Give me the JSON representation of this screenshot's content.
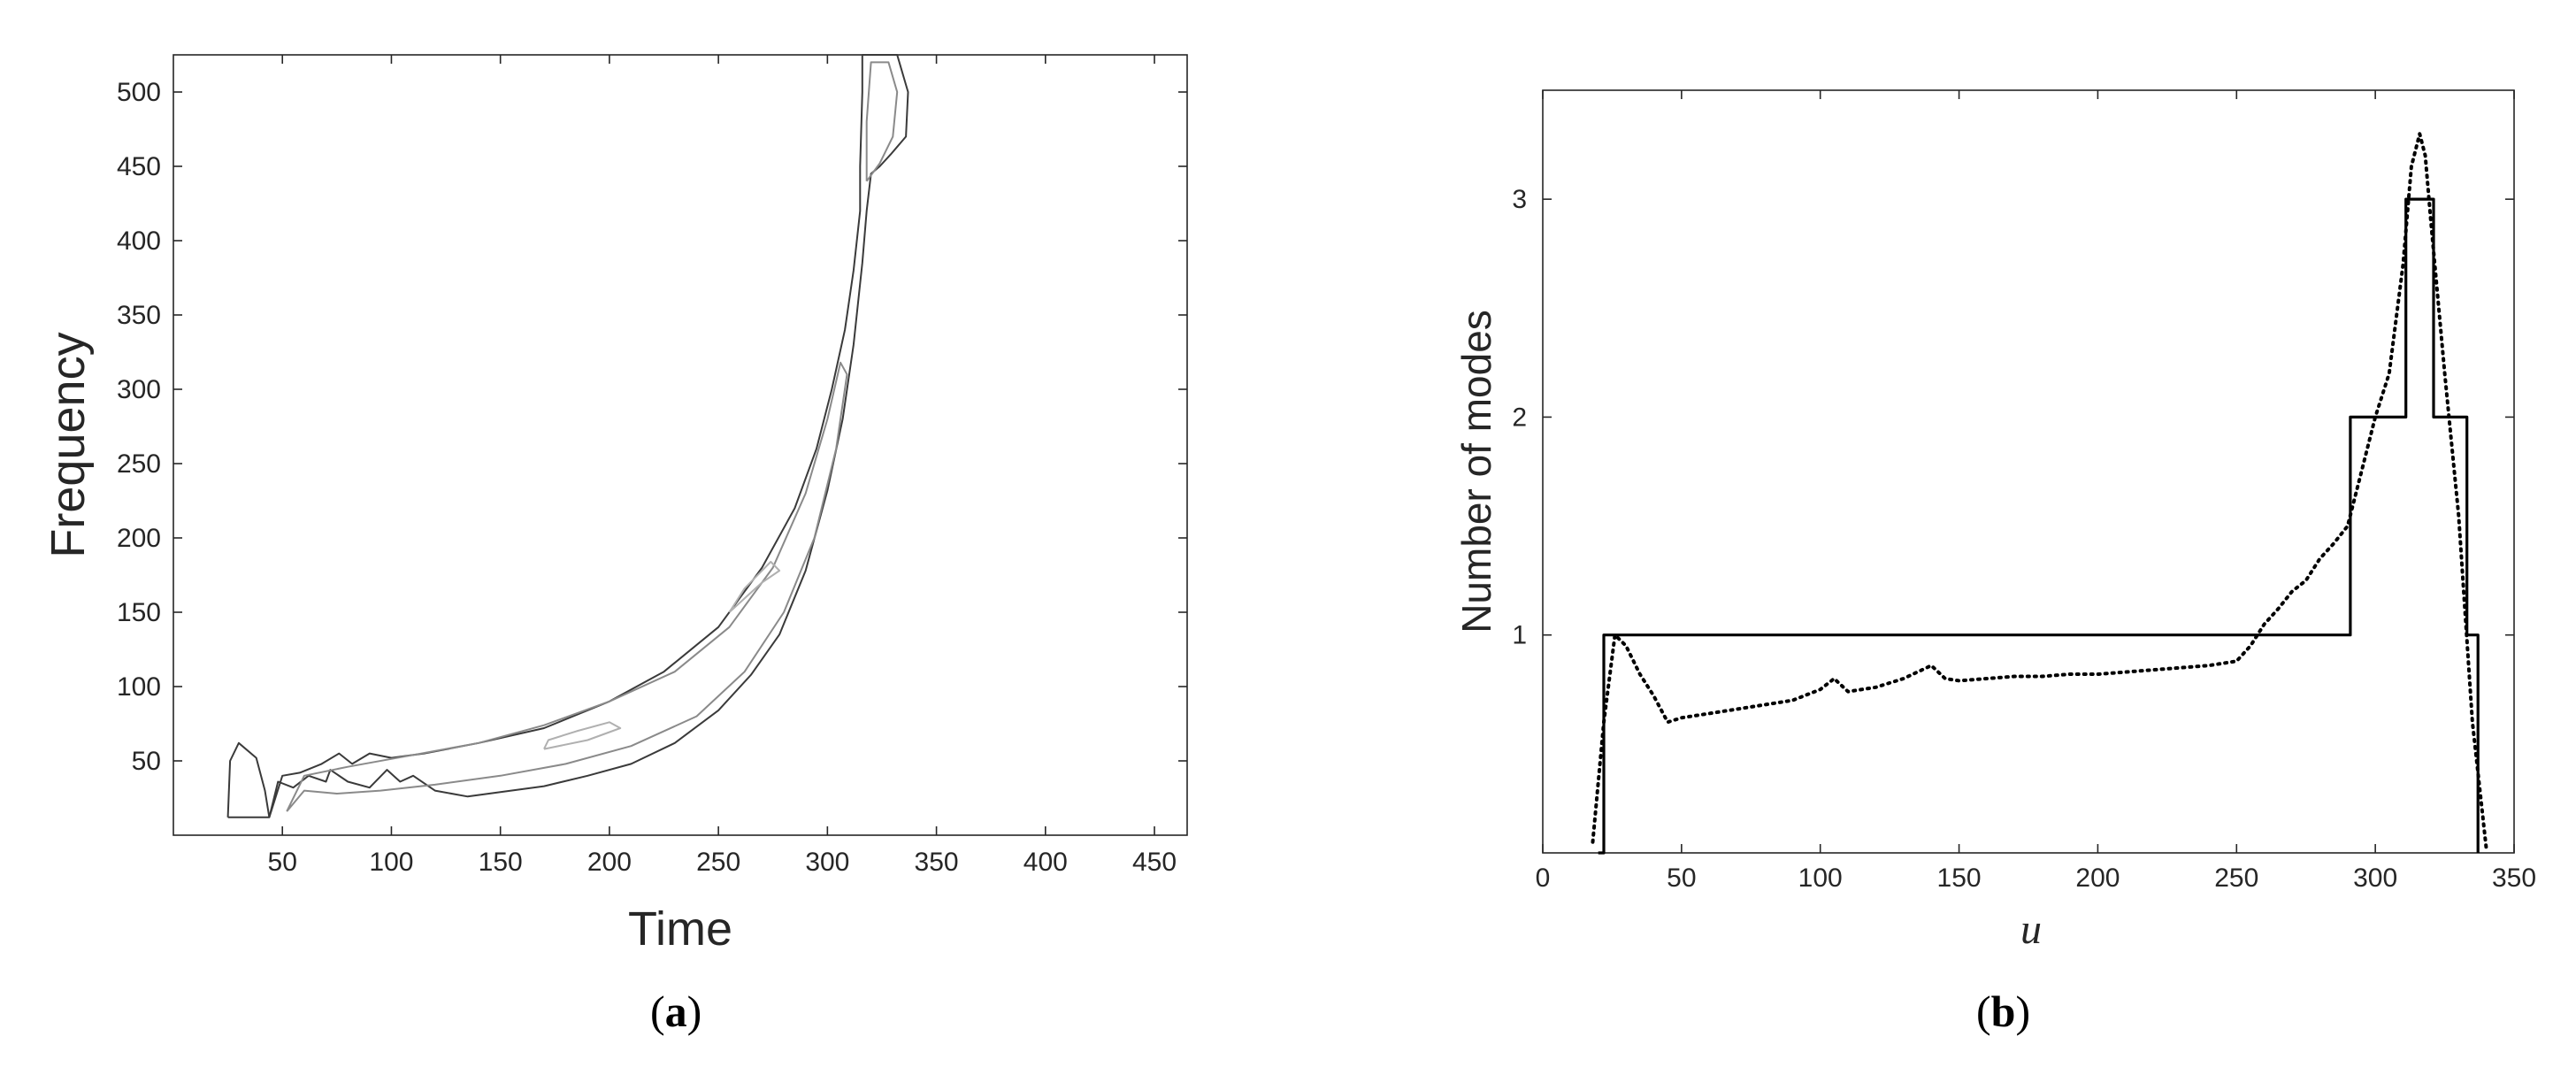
{
  "chart_data": [
    {
      "panel": "a",
      "type": "contour",
      "caption_letter": "a",
      "xlabel": "Time",
      "ylabel": "Frequency",
      "xlim": [
        0,
        465
      ],
      "ylim": [
        0,
        525
      ],
      "xticks": [
        50,
        100,
        150,
        200,
        250,
        300,
        350,
        400,
        450
      ],
      "yticks": [
        50,
        100,
        150,
        200,
        250,
        300,
        350,
        400,
        450,
        500
      ],
      "contours": [
        {
          "level": "outer",
          "color": "#3a3a3a",
          "points": [
            [
              44,
              12
            ],
            [
              48,
              36
            ],
            [
              55,
              32
            ],
            [
              62,
              40
            ],
            [
              70,
              36
            ],
            [
              72,
              44
            ],
            [
              80,
              36
            ],
            [
              90,
              32
            ],
            [
              98,
              44
            ],
            [
              104,
              36
            ],
            [
              110,
              40
            ],
            [
              120,
              30
            ],
            [
              135,
              26
            ],
            [
              150,
              29
            ],
            [
              170,
              33
            ],
            [
              190,
              40
            ],
            [
              210,
              48
            ],
            [
              230,
              62
            ],
            [
              250,
              84
            ],
            [
              265,
              108
            ],
            [
              278,
              135
            ],
            [
              290,
              178
            ],
            [
              300,
              232
            ],
            [
              307,
              280
            ],
            [
              312,
              330
            ],
            [
              316,
              385
            ],
            [
              318,
              420
            ],
            [
              320,
              445
            ],
            [
              324,
              450
            ],
            [
              329,
              458
            ],
            [
              336,
              470
            ],
            [
              337,
              500
            ],
            [
              332,
              525
            ],
            [
              316,
              525
            ],
            [
              316,
              500
            ],
            [
              315,
              450
            ],
            [
              315,
              420
            ],
            [
              312,
              380
            ],
            [
              308,
              340
            ],
            [
              302,
              300
            ],
            [
              295,
              260
            ],
            [
              285,
              220
            ],
            [
              270,
              180
            ],
            [
              250,
              140
            ],
            [
              225,
              110
            ],
            [
              200,
              90
            ],
            [
              170,
              72
            ],
            [
              140,
              62
            ],
            [
              115,
              55
            ],
            [
              100,
              52
            ],
            [
              90,
              55
            ],
            [
              82,
              48
            ],
            [
              76,
              55
            ],
            [
              68,
              48
            ],
            [
              58,
              42
            ],
            [
              50,
              40
            ],
            [
              44,
              12
            ]
          ]
        },
        {
          "level": "left-lobe",
          "color": "#3a3a3a",
          "points": [
            [
              25,
              12
            ],
            [
              26,
              50
            ],
            [
              30,
              62
            ],
            [
              38,
              52
            ],
            [
              42,
              30
            ],
            [
              44,
              12
            ],
            [
              25,
              12
            ]
          ]
        },
        {
          "level": "inner",
          "color": "#8a8a8a",
          "points": [
            [
              52,
              16
            ],
            [
              60,
              30
            ],
            [
              75,
              28
            ],
            [
              95,
              30
            ],
            [
              120,
              34
            ],
            [
              150,
              40
            ],
            [
              180,
              48
            ],
            [
              210,
              60
            ],
            [
              240,
              80
            ],
            [
              262,
              110
            ],
            [
              280,
              150
            ],
            [
              294,
              200
            ],
            [
              304,
              260
            ],
            [
              309,
              310
            ],
            [
              306,
              318
            ],
            [
              300,
              280
            ],
            [
              290,
              230
            ],
            [
              275,
              180
            ],
            [
              255,
              140
            ],
            [
              230,
              110
            ],
            [
              200,
              90
            ],
            [
              170,
              74
            ],
            [
              140,
              62
            ],
            [
              110,
              54
            ],
            [
              80,
              46
            ],
            [
              60,
              40
            ],
            [
              52,
              16
            ]
          ]
        },
        {
          "level": "core",
          "color": "#b0b0b0",
          "points": [
            [
              170,
              58
            ],
            [
              190,
              64
            ],
            [
              205,
              72
            ],
            [
              200,
              76
            ],
            [
              185,
              70
            ],
            [
              172,
              64
            ],
            [
              170,
              58
            ]
          ]
        },
        {
          "level": "core",
          "color": "#b0b0b0",
          "points": [
            [
              255,
              150
            ],
            [
              270,
              170
            ],
            [
              278,
              178
            ],
            [
              274,
              184
            ],
            [
              262,
              166
            ],
            [
              255,
              150
            ]
          ]
        },
        {
          "level": "top-inner",
          "color": "#8a8a8a",
          "points": [
            [
              318,
              440
            ],
            [
              324,
              452
            ],
            [
              330,
              470
            ],
            [
              332,
              500
            ],
            [
              328,
              520
            ],
            [
              320,
              520
            ],
            [
              318,
              480
            ],
            [
              318,
              440
            ]
          ]
        }
      ]
    },
    {
      "panel": "b",
      "type": "line",
      "caption_letter": "b",
      "xlabel": "u",
      "ylabel": "Number of modes",
      "xlim": [
        0,
        350
      ],
      "ylim": [
        0,
        3.5
      ],
      "xticks": [
        0,
        50,
        100,
        150,
        200,
        250,
        300,
        350
      ],
      "yticks": [
        1,
        2,
        3
      ],
      "series": [
        {
          "style": "solid",
          "x": [
            20,
            22,
            22,
            291,
            291,
            311,
            311,
            321,
            321,
            333,
            333,
            337,
            337
          ],
          "y": [
            0,
            0,
            1,
            1,
            2,
            2,
            3,
            3,
            2,
            2,
            1,
            1,
            0
          ]
        },
        {
          "style": "dotted",
          "x": [
            18,
            22,
            26,
            30,
            35,
            40,
            45,
            50,
            60,
            70,
            80,
            90,
            100,
            105,
            110,
            120,
            130,
            140,
            145,
            150,
            160,
            170,
            180,
            190,
            200,
            210,
            220,
            230,
            240,
            250,
            255,
            260,
            265,
            270,
            275,
            280,
            285,
            290,
            295,
            300,
            305,
            310,
            313,
            316,
            318,
            320,
            325,
            330,
            335,
            340
          ],
          "y": [
            0.05,
            0.6,
            1.0,
            0.95,
            0.82,
            0.72,
            0.6,
            0.62,
            0.64,
            0.66,
            0.68,
            0.7,
            0.75,
            0.8,
            0.74,
            0.76,
            0.8,
            0.86,
            0.8,
            0.79,
            0.8,
            0.81,
            0.81,
            0.82,
            0.82,
            0.83,
            0.84,
            0.85,
            0.86,
            0.88,
            0.95,
            1.05,
            1.12,
            1.2,
            1.25,
            1.35,
            1.42,
            1.5,
            1.75,
            2.0,
            2.2,
            2.7,
            3.15,
            3.3,
            3.2,
            2.9,
            2.2,
            1.55,
            0.6,
            0.02
          ]
        }
      ]
    }
  ]
}
